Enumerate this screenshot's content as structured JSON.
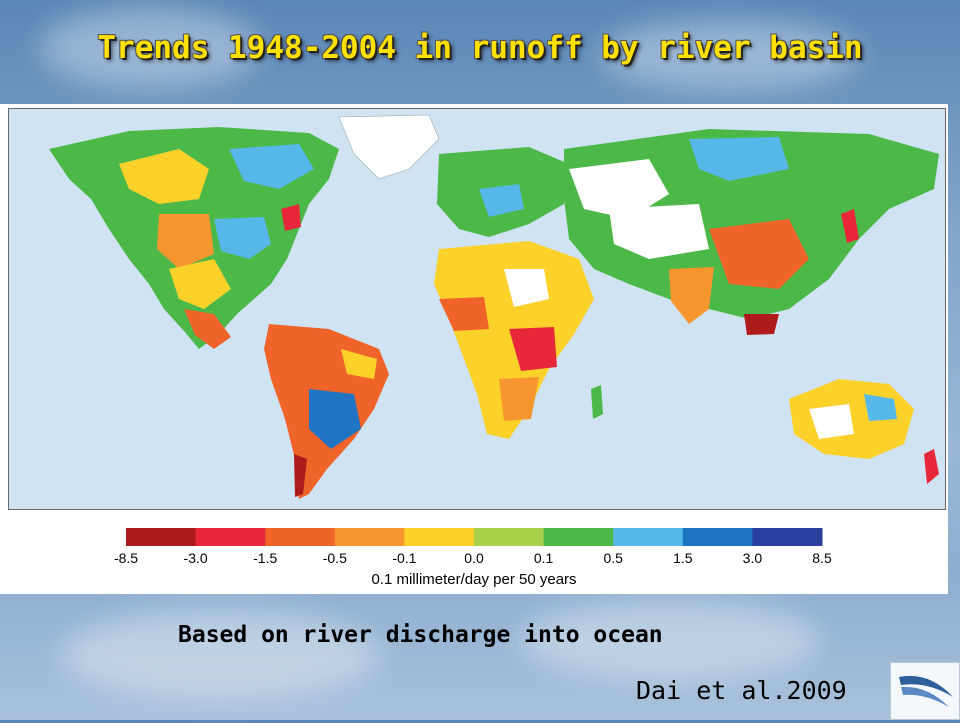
{
  "slide": {
    "title": "Trends 1948-2004 in runoff by river basin",
    "subtitle": "Based on river discharge into ocean",
    "citation": "Dai et al.2009"
  },
  "legend": {
    "ticks": [
      "-8.5",
      "-3.0",
      "-1.5",
      "-0.5",
      "-0.1",
      "0.0",
      "0.1",
      "0.5",
      "1.5",
      "3.0",
      "8.5"
    ],
    "colors": [
      "#b01a1a",
      "#e8283a",
      "#f0642a",
      "#f7962e",
      "#fcd12a",
      "#a8d04a",
      "#4cb848",
      "#56b8e8",
      "#1f74c4",
      "#2a3f9e"
    ],
    "unit_label": "0.1 millimeter/day per 50 years"
  },
  "map": {
    "ocean_color": "#cfe3f3",
    "no_data_color": "#ffffff"
  },
  "logo": {
    "icon": "swoosh-logo-icon"
  }
}
